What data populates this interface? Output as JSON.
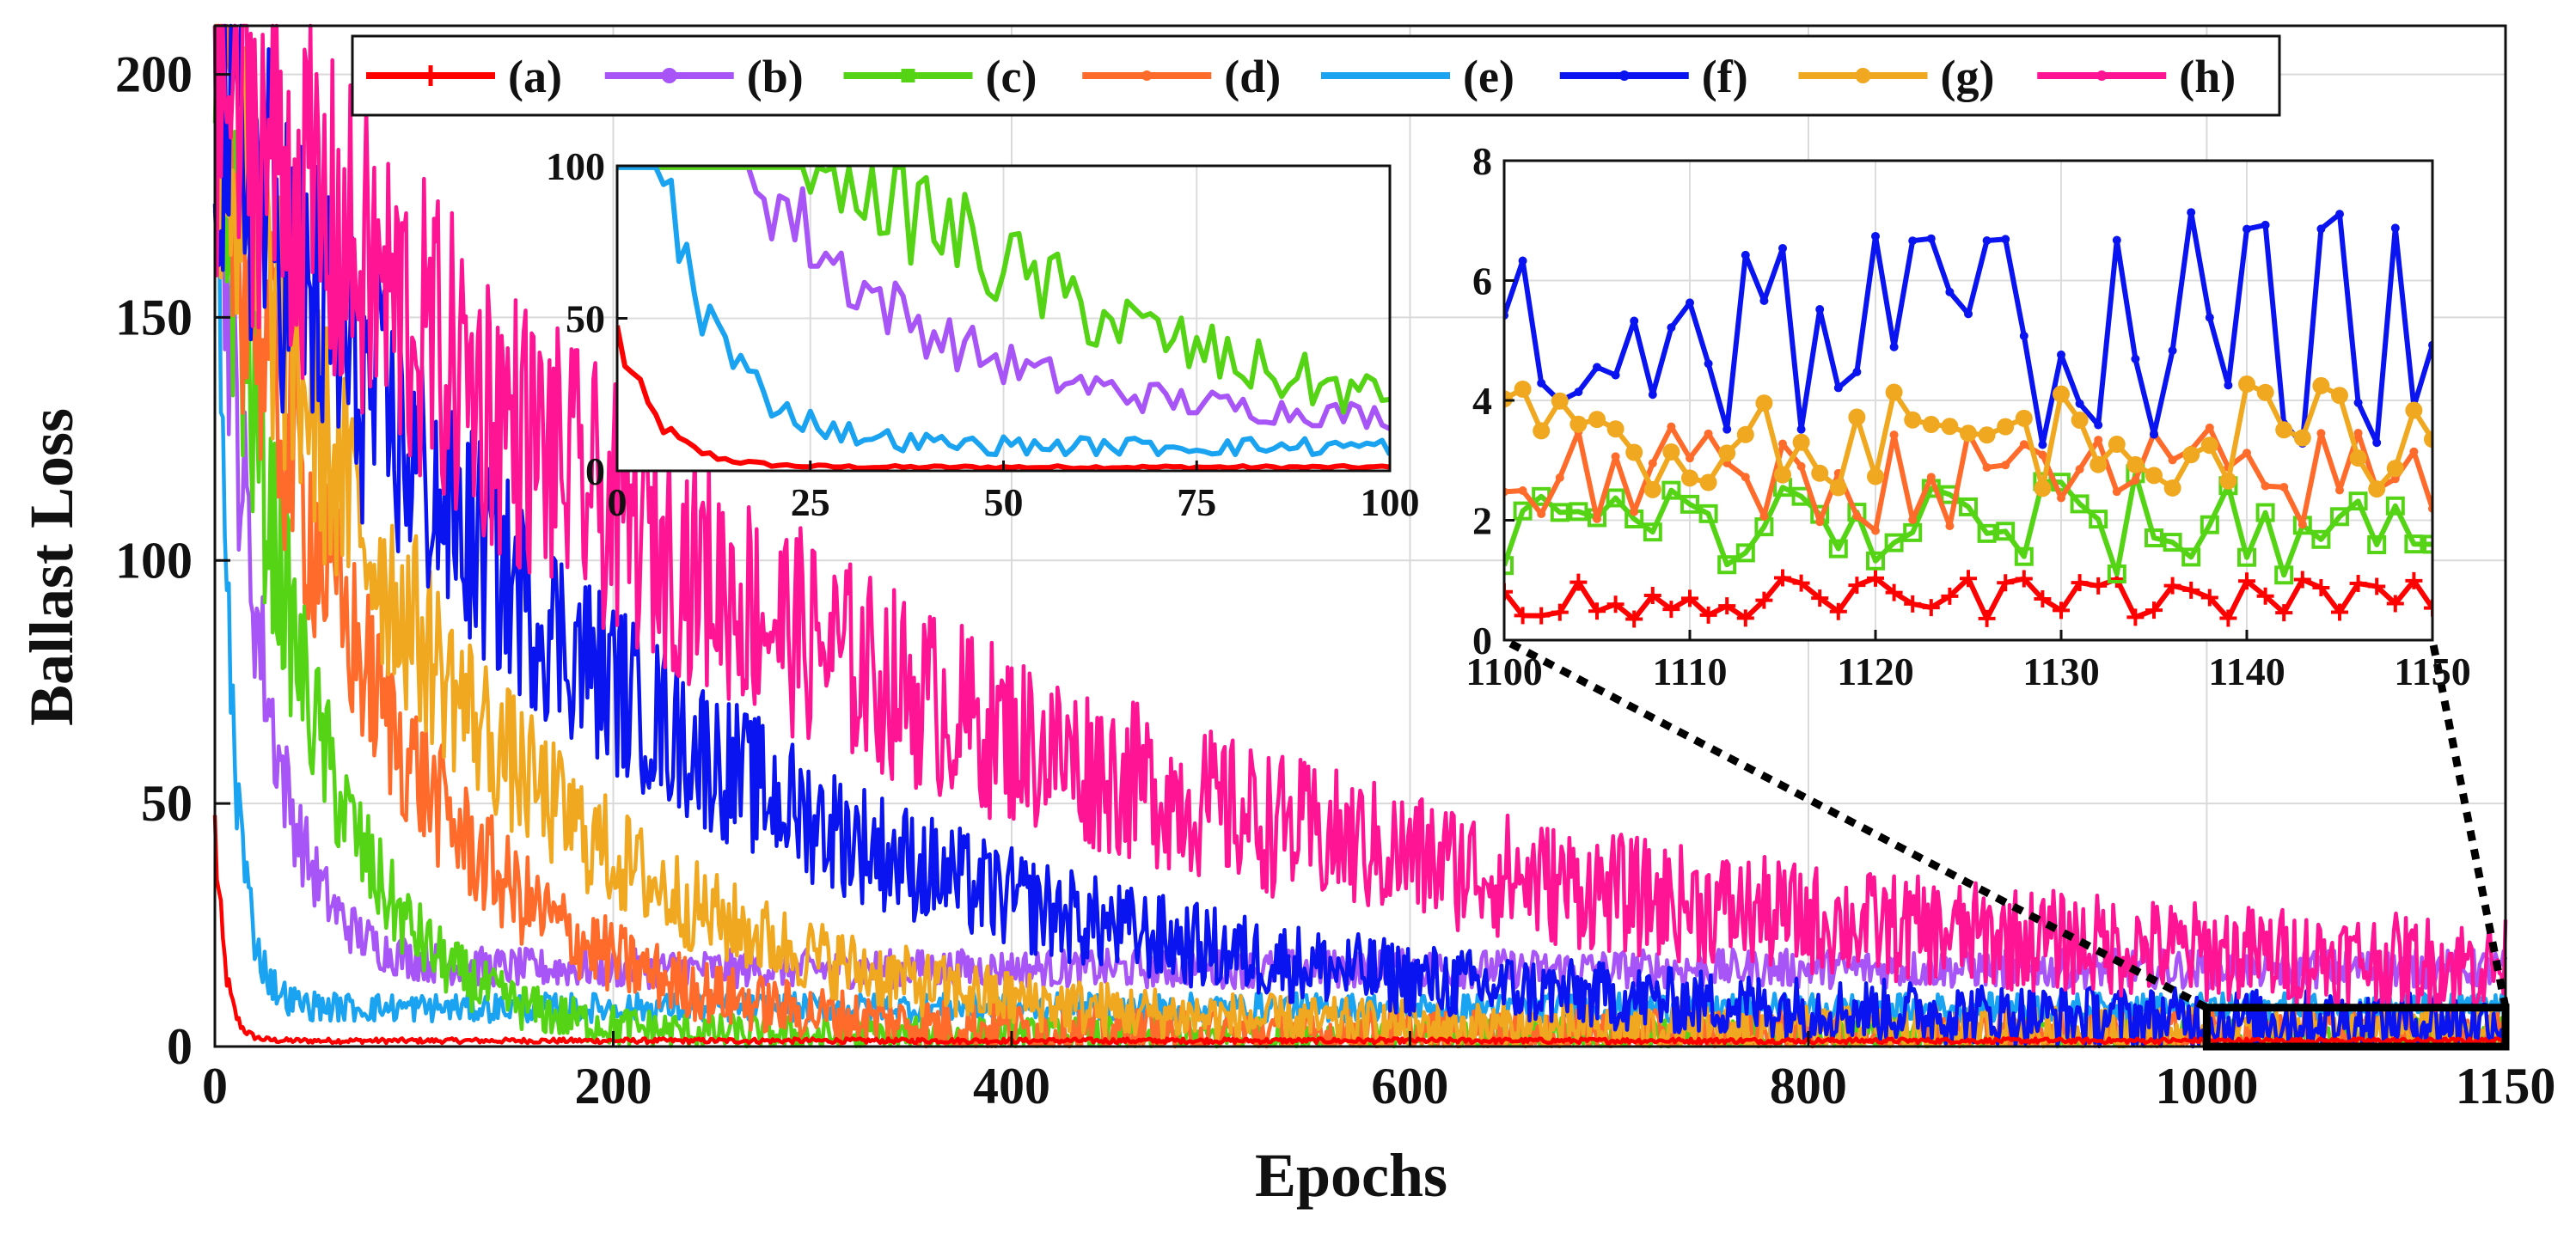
{
  "chart_data": {
    "type": "line",
    "title": "",
    "xlabel": "Epochs",
    "ylabel": "Ballast Loss",
    "xlim": [
      0,
      1150
    ],
    "ylim": [
      0,
      210
    ],
    "xticks": [
      0,
      200,
      400,
      600,
      800,
      1000,
      1150
    ],
    "yticks": [
      0,
      50,
      100,
      150,
      200
    ],
    "grid": true,
    "legend_position": "top",
    "series": [
      {
        "name": "(a)",
        "color": "#ff0000",
        "marker": "plus",
        "start": 45,
        "plateau": 1.2,
        "tau": 5,
        "noise": 0.5
      },
      {
        "name": "(b)",
        "color": "#a855f7",
        "marker": "circle",
        "start": 205,
        "plateau": 16,
        "tau": 22,
        "noise": 4
      },
      {
        "name": "(c)",
        "color": "#55d415",
        "marker": "square",
        "start": 200,
        "plateau": 2,
        "tau": 45,
        "noise": 4
      },
      {
        "name": "(d)",
        "color": "#ff6b2a",
        "marker": "dot",
        "start": 195,
        "plateau": 2.5,
        "tau": 80,
        "noise": 5
      },
      {
        "name": "(e)",
        "color": "#1aa3f0",
        "marker": "none",
        "start": 195,
        "plateau": 8,
        "tau": 8,
        "noise": 3
      },
      {
        "name": "(f)",
        "color": "#0a14f0",
        "marker": "dot",
        "start": 195,
        "plateau": 4.5,
        "tau": 200,
        "noise": 6
      },
      {
        "name": "(g)",
        "color": "#f0a820",
        "marker": "asterisk",
        "start": 195,
        "plateau": 3,
        "tau": 120,
        "noise": 5
      },
      {
        "name": "(h)",
        "color": "#ff1493",
        "marker": "dot",
        "start": 200,
        "plateau": 12,
        "tau": 310,
        "noise": 9
      }
    ],
    "zoom_box": {
      "x": [
        1000,
        1150
      ],
      "y": [
        0,
        8
      ]
    },
    "insets": [
      {
        "name": "early-epochs",
        "xlim": [
          0,
          100
        ],
        "ylim": [
          0,
          100
        ],
        "xticks": [
          0,
          25,
          50,
          75,
          100
        ],
        "yticks": [
          0,
          50,
          100
        ],
        "series_shown": [
          "(a)",
          "(b)",
          "(c)",
          "(e)"
        ]
      },
      {
        "name": "late-epochs",
        "xlim": [
          1100,
          1150
        ],
        "ylim": [
          0,
          8
        ],
        "xticks": [
          1100,
          1110,
          1120,
          1130,
          1140,
          1150
        ],
        "yticks": [
          0,
          2,
          4,
          6,
          8
        ],
        "series_shown": [
          "(a)",
          "(c)",
          "(d)",
          "(f)",
          "(g)"
        ],
        "approx_levels": {
          "(a)": 0.7,
          "(c)": 1.9,
          "(d)": 2.7,
          "(g)": 3.4,
          "(f)": 5.2
        }
      }
    ]
  }
}
